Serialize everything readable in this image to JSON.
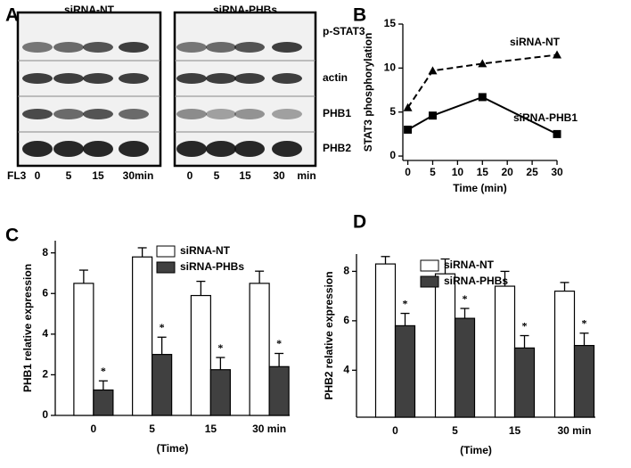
{
  "blot": {
    "label": "A",
    "titles": [
      "siRNA-NT",
      "siRNA-PHBs"
    ],
    "rows": [
      "p-STAT3",
      "actin",
      "PHB1",
      "PHB2"
    ],
    "treatment": "FL3",
    "times_left": [
      "0",
      "5",
      "15",
      "30min"
    ],
    "times_right": [
      "0",
      "5",
      "15",
      "30",
      "min"
    ]
  },
  "chart_data": [
    {
      "type": "line",
      "panel": "B",
      "x_label": "Time (min)",
      "y_label": "STAT3  phosphorylation",
      "x": [
        0,
        5,
        15,
        30
      ],
      "series": [
        {
          "name": "siRNA-NT",
          "color": "#000000",
          "line_style": "dashed",
          "marker": "triangle",
          "values": [
            5.5,
            9.7,
            10.5,
            11.5
          ]
        },
        {
          "name": "siRNA-PHB1",
          "color": "#000000",
          "line_style": "solid",
          "marker": "square",
          "values": [
            3,
            4.6,
            6.7,
            2.5
          ]
        }
      ],
      "xlim": [
        -1,
        30
      ],
      "xticks": [
        0,
        5,
        10,
        15,
        20,
        25,
        30
      ],
      "ylim": [
        -0.5,
        15
      ],
      "yticks": [
        0,
        5,
        10,
        15
      ]
    },
    {
      "type": "bar",
      "panel": "C",
      "x_label": "(Time)",
      "y_label": "PHB1 relative expression",
      "categories": [
        "0",
        "5",
        "15",
        "30 min"
      ],
      "series": [
        {
          "name": "siRNA-NT",
          "color": "#ffffff",
          "values": [
            6.5,
            7.8,
            5.9,
            6.5
          ],
          "errors": [
            0.65,
            0.45,
            0.7,
            0.6
          ]
        },
        {
          "name": "siRNA-PHBs",
          "color": "#404040",
          "values": [
            1.25,
            3.0,
            2.25,
            2.4
          ],
          "errors": [
            0.45,
            0.85,
            0.6,
            0.65
          ]
        }
      ],
      "annotations": [
        "*",
        "*",
        "*",
        "*"
      ],
      "ylim": [
        0,
        8.6
      ],
      "yticks": [
        0,
        2,
        4,
        6,
        8
      ]
    },
    {
      "type": "bar",
      "panel": "D",
      "x_label": "(Time)",
      "y_label": "PHB2 relative expression",
      "categories": [
        "0",
        "5",
        "15",
        "30 min"
      ],
      "series": [
        {
          "name": "siRNA-NT",
          "color": "#ffffff",
          "values": [
            8.3,
            7.9,
            7.4,
            7.2
          ],
          "errors": [
            0.3,
            0.6,
            0.6,
            0.35
          ]
        },
        {
          "name": "siRNA-PHBs",
          "color": "#404040",
          "values": [
            5.8,
            6.1,
            4.9,
            5.0
          ],
          "errors": [
            0.5,
            0.4,
            0.5,
            0.5
          ]
        }
      ],
      "annotations": [
        "*",
        "*",
        "*",
        "*"
      ],
      "ylim": [
        2.1,
        8.7
      ],
      "yticks": [
        4,
        6,
        8
      ]
    }
  ]
}
